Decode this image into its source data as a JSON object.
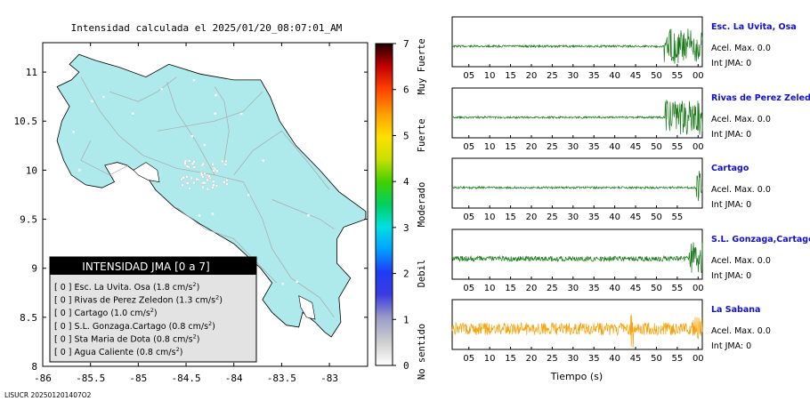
{
  "title": "Intensidad calculada el 2025/01/20_08:07:01_AM",
  "footer_id": "LISUCR 202501201407O2",
  "map": {
    "xlim": [
      -86.0,
      -82.6
    ],
    "ylim": [
      8.0,
      11.3
    ],
    "x_ticks": [
      "-86",
      "-85.5",
      "-85",
      "-84.5",
      "-84",
      "-83.5",
      "-83"
    ],
    "x_tick_values": [
      -86,
      -85.5,
      -85,
      -84.5,
      -84,
      -83.5,
      -83
    ],
    "y_ticks": [
      "8",
      "8.5",
      "9",
      "9.5",
      "10",
      "10.5",
      "11"
    ],
    "y_tick_values": [
      8,
      8.5,
      9,
      9.5,
      10,
      10.5,
      11
    ],
    "land_color": "#aeeaeb"
  },
  "legend": {
    "title": "INTENSIDAD JMA [0 a 7]",
    "items": [
      {
        "level": "[ 0 ]",
        "name": "Esc. La Uvita. Osa",
        "value": "(1.8 cm/s",
        "sup": "2",
        "close": ")"
      },
      {
        "level": "[ 0 ]",
        "name": "Rivas de Perez Zeledon",
        "value": "(1.3 cm/s",
        "sup": "2",
        "close": ")"
      },
      {
        "level": "[ 0 ]",
        "name": "Cartago",
        "value": "(1.0 cm/s",
        "sup": "2",
        "close": ")"
      },
      {
        "level": "[ 0 ]",
        "name": "S.L. Gonzaga.Cartago",
        "value": "(0.8 cm/s",
        "sup": "2",
        "close": ")"
      },
      {
        "level": "[ 0 ]",
        "name": "Sta Maria de Dota",
        "value": "(0.8 cm/s",
        "sup": "2",
        "close": ")"
      },
      {
        "level": "[ 0 ]",
        "name": "Agua Caliente",
        "value": "(0.8 cm/s",
        "sup": "2",
        "close": ")"
      }
    ]
  },
  "colorbar": {
    "ticks": [
      "0",
      "1",
      "2",
      "3",
      "4",
      "5",
      "6",
      "7"
    ],
    "labels": [
      "No sentido",
      "Debil",
      "Moderado",
      "Fuerte",
      "Muy Fuerte"
    ],
    "label_levels": [
      0.3,
      2.0,
      3.5,
      5.0,
      6.5
    ]
  },
  "chart_data": {
    "type": "line",
    "xlabel": "Tiempo (s)",
    "x_ticks": [
      "05",
      "10",
      "15",
      "20",
      "25",
      "30",
      "35",
      "40",
      "45",
      "50",
      "55",
      "00"
    ],
    "x_tick_values": [
      5,
      10,
      15,
      20,
      25,
      30,
      35,
      40,
      45,
      50,
      55,
      60
    ],
    "xlim": [
      1,
      61
    ],
    "series": [
      {
        "name": "Esc. La Uvita, Osa",
        "accel_label": "Acel. Max. 0.0",
        "jma_label": "Int JMA: 0",
        "color": "#1a7a1a",
        "onset": 51.8,
        "x_ticks_override": null
      },
      {
        "name": "Rivas de Perez Zeledon",
        "accel_label": "Acel. Max. 0.0",
        "jma_label": "Int JMA: 0",
        "color": "#1a7a1a",
        "onset": 52.0,
        "x_ticks_override": null
      },
      {
        "name": "Cartago",
        "accel_label": "Acel. Max. 0.0",
        "jma_label": "Int JMA: 0",
        "color": "#1a7a1a",
        "onset": 59.6,
        "x_ticks_override": [
          "05",
          "10",
          "15",
          "20",
          "25",
          "30",
          "35",
          "40",
          "45",
          "50",
          "55"
        ]
      },
      {
        "name": "S.L. Gonzaga,Cartago",
        "accel_label": "Acel. Max. 0.0",
        "jma_label": "Int JMA: 0",
        "color": "#1a7a1a",
        "onset": 57.8,
        "x_ticks_override": null
      },
      {
        "name": "La Sabana",
        "accel_label": "Acel. Max. 0.0",
        "jma_label": "Int JMA: 0",
        "color": "#f5a20a",
        "onset": 58.5,
        "x_ticks_override": null
      }
    ]
  }
}
